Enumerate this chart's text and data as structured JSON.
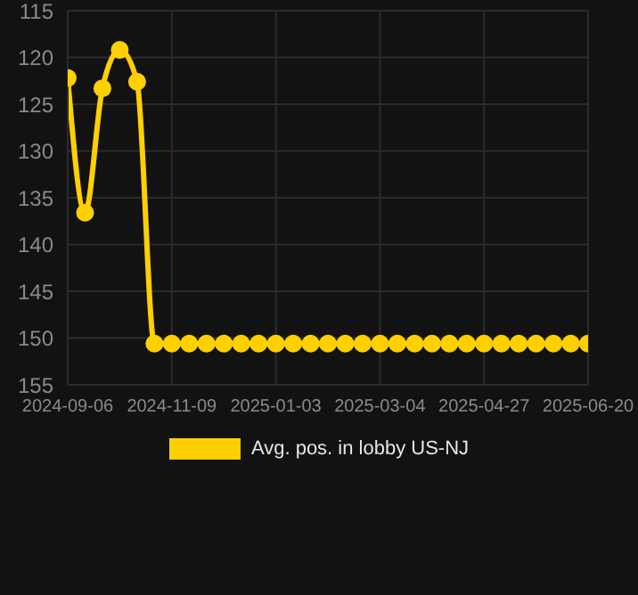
{
  "chart_data": {
    "type": "line",
    "categories": [
      "2024-09-06",
      null,
      null,
      null,
      null,
      null,
      "2024-11-09",
      null,
      null,
      null,
      null,
      null,
      "2025-01-03",
      null,
      null,
      null,
      null,
      null,
      "2025-03-04",
      null,
      null,
      null,
      null,
      null,
      "2025-04-27",
      null,
      null,
      null,
      null,
      null,
      "2025-06-20"
    ],
    "series": [
      {
        "name": "Avg. pos. in lobby US-NJ",
        "color": "#ffd000",
        "values": [
          122.2,
          136.6,
          123.3,
          119.2,
          122.6,
          150.6,
          150.6,
          150.6,
          150.6,
          150.6,
          150.6,
          150.6,
          150.6,
          150.6,
          150.6,
          150.6,
          150.6,
          150.6,
          150.6,
          150.6,
          150.6,
          150.6,
          150.6,
          150.6,
          150.6,
          150.6,
          150.6,
          150.6,
          150.6,
          150.6,
          150.6
        ]
      }
    ],
    "ylim": [
      155,
      115
    ],
    "yticks": [
      115,
      120,
      125,
      130,
      135,
      140,
      145,
      150,
      155
    ],
    "grid": true,
    "legend": "bottom",
    "marker": "circle",
    "line_style": "solid"
  }
}
